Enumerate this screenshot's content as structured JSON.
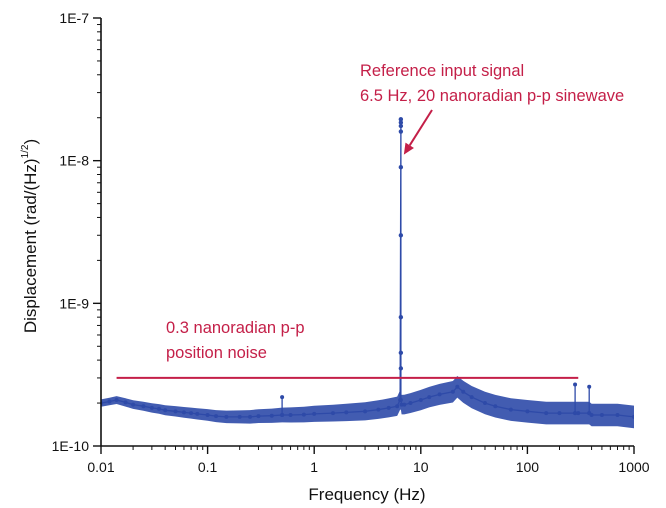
{
  "chart_data": {
    "type": "line",
    "title": "",
    "xlabel": "Frequency (Hz)",
    "ylabel": {
      "main": "Displacement (rad/(Hz)",
      "superscript": "1/2",
      "close": ")"
    },
    "x_scale": "log",
    "y_scale": "log",
    "xlim": [
      0.01,
      1000
    ],
    "ylim": [
      1e-10,
      1e-07
    ],
    "x_ticks": [
      {
        "value": 0.01,
        "label": "0.01"
      },
      {
        "value": 0.1,
        "label": "0.1"
      },
      {
        "value": 1,
        "label": "1"
      },
      {
        "value": 10,
        "label": "10"
      },
      {
        "value": 100,
        "label": "100"
      },
      {
        "value": 1000,
        "label": "1000"
      }
    ],
    "y_ticks": [
      {
        "value": 1e-10,
        "label": "1E-10"
      },
      {
        "value": 1e-09,
        "label": "1E-9"
      },
      {
        "value": 1e-08,
        "label": "1E-8"
      },
      {
        "value": 1e-07,
        "label": "1E-7"
      }
    ],
    "grid": false,
    "legend": "none",
    "colors": {
      "series": "#2e4aa8",
      "annotation": "#c41f48",
      "axis": "#111111"
    },
    "series": [
      {
        "x": [
          0.01,
          0.012,
          0.014,
          0.017,
          0.02,
          0.025,
          0.03,
          0.035,
          0.04,
          0.05,
          0.06,
          0.07,
          0.08,
          0.1,
          0.12,
          0.15,
          0.2,
          0.25,
          0.3,
          0.4,
          0.5,
          0.5,
          0.5,
          0.6,
          0.8,
          1,
          1.5,
          2,
          3,
          4,
          5,
          6,
          6.4,
          6.5,
          6.5,
          6.6,
          7,
          8,
          10,
          12,
          15,
          20,
          22,
          25,
          30,
          40,
          50,
          70,
          100,
          150,
          200,
          280,
          280,
          280,
          300,
          380,
          380,
          380,
          400,
          500,
          700,
          1000
        ],
        "y": [
          2e-10,
          2.05e-10,
          2.1e-10,
          2.02e-10,
          1.95e-10,
          1.9e-10,
          1.85e-10,
          1.82e-10,
          1.78e-10,
          1.75e-10,
          1.72e-10,
          1.7e-10,
          1.68e-10,
          1.65e-10,
          1.62e-10,
          1.6e-10,
          1.6e-10,
          1.6e-10,
          1.62e-10,
          1.63e-10,
          1.65e-10,
          2.2e-10,
          1.65e-10,
          1.65e-10,
          1.66e-10,
          1.68e-10,
          1.7e-10,
          1.72e-10,
          1.75e-10,
          1.8e-10,
          1.85e-10,
          1.9e-10,
          2.1e-10,
          1.95e-08,
          2.1e-10,
          1.95e-10,
          1.95e-10,
          2e-10,
          2.1e-10,
          2.2e-10,
          2.3e-10,
          2.4e-10,
          2.6e-10,
          2.4e-10,
          2.2e-10,
          2e-10,
          1.9e-10,
          1.8e-10,
          1.75e-10,
          1.7e-10,
          1.7e-10,
          1.7e-10,
          2.7e-10,
          1.7e-10,
          1.7e-10,
          1.7e-10,
          2.6e-10,
          1.7e-10,
          1.65e-10,
          1.65e-10,
          1.65e-10,
          1.6e-10
        ]
      }
    ],
    "peak_points": [
      {
        "x": 6.5,
        "y": 1.95e-08
      },
      {
        "x": 6.5,
        "y": 1.85e-08
      },
      {
        "x": 6.5,
        "y": 1.75e-08
      },
      {
        "x": 6.5,
        "y": 1.6e-08
      },
      {
        "x": 6.5,
        "y": 9e-09
      },
      {
        "x": 6.5,
        "y": 3e-09
      },
      {
        "x": 6.5,
        "y": 8e-10
      },
      {
        "x": 6.5,
        "y": 4.5e-10
      },
      {
        "x": 6.5,
        "y": 3.5e-10
      }
    ],
    "reference_line": {
      "x1": 0.014,
      "x2": 300,
      "y": 3e-10
    },
    "annotations": [
      {
        "lines": [
          "0.3 nanoradian p-p",
          "position noise"
        ]
      },
      {
        "lines": [
          "Reference input signal",
          "6.5 Hz, 20 nanoradian p-p sinewave"
        ],
        "arrow_to": {
          "x": 6.5,
          "y": 1.05e-08
        }
      }
    ]
  }
}
